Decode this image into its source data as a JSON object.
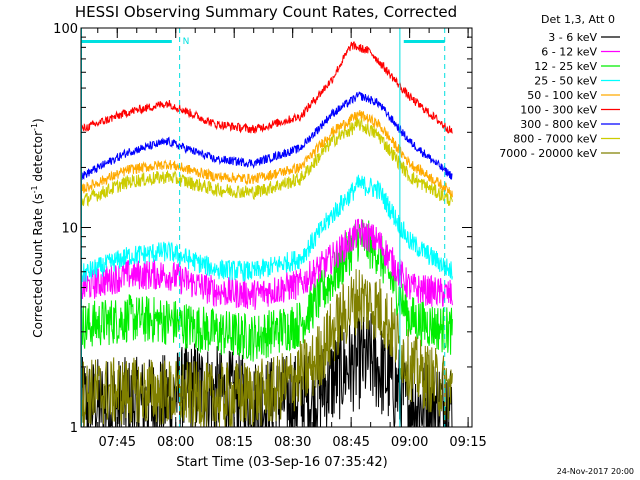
{
  "chart_data": {
    "type": "line",
    "title": "HESSI Observing Summary Count Rates, Corrected",
    "ylabel_main": "Corrected Count Rate (s",
    "ylabel_sup": "-1",
    "ylabel_mid": " detector",
    "ylabel_sup2": "-1",
    "ylabel_end": ")",
    "xlabel": "Start Time (03-Sep-16 07:35:42)",
    "yscale": "log",
    "ylim": [
      1,
      100
    ],
    "y_ticks": [
      "1",
      "10",
      "100"
    ],
    "x_range_minutes": [
      455.7,
      556.0
    ],
    "x_ticks": [
      {
        "t": 465,
        "label": "07:45"
      },
      {
        "t": 480,
        "label": "08:00"
      },
      {
        "t": 495,
        "label": "08:15"
      },
      {
        "t": 510,
        "label": "08:30"
      },
      {
        "t": 525,
        "label": "08:45"
      },
      {
        "t": 540,
        "label": "09:00"
      },
      {
        "t": 555,
        "label": "09:15"
      }
    ],
    "legend_title": "Det 1,3, Att 0",
    "legend_placement": "right",
    "series": [
      {
        "name": "3 - 6 keV",
        "color": "#000000",
        "base": [
          [
            455.7,
            1.3
          ],
          [
            475,
            1.3
          ],
          [
            485,
            1.6
          ],
          [
            500,
            1.3
          ],
          [
            515,
            1.4
          ],
          [
            524,
            2.0
          ],
          [
            530,
            2.2
          ],
          [
            540,
            1.3
          ],
          [
            551,
            1.3
          ]
        ],
        "noise": 0.55,
        "floor": 1.0
      },
      {
        "name": "6 - 12 keV",
        "color": "#ff00ff",
        "base": [
          [
            455.7,
            5.0
          ],
          [
            468,
            5.8
          ],
          [
            478,
            5.8
          ],
          [
            490,
            4.8
          ],
          [
            500,
            4.6
          ],
          [
            512,
            5.2
          ],
          [
            520,
            7.0
          ],
          [
            527,
            9.5
          ],
          [
            532,
            8.5
          ],
          [
            540,
            5.0
          ],
          [
            551,
            4.6
          ]
        ],
        "noise": 0.18,
        "floor": 1.0
      },
      {
        "name": "12 - 25 keV",
        "color": "#00ee00",
        "base": [
          [
            455.7,
            3.2
          ],
          [
            468,
            3.5
          ],
          [
            478,
            3.4
          ],
          [
            490,
            3.0
          ],
          [
            500,
            2.8
          ],
          [
            512,
            3.3
          ],
          [
            520,
            5.5
          ],
          [
            527,
            9.0
          ],
          [
            532,
            7.5
          ],
          [
            540,
            3.5
          ],
          [
            551,
            3.0
          ]
        ],
        "noise": 0.28,
        "floor": 1.0
      },
      {
        "name": "25 - 50 keV",
        "color": "#00ffff",
        "base": [
          [
            455.7,
            5.8
          ],
          [
            468,
            7.2
          ],
          [
            478,
            7.6
          ],
          [
            490,
            6.2
          ],
          [
            500,
            6.0
          ],
          [
            512,
            7.0
          ],
          [
            520,
            11.5
          ],
          [
            527,
            16.5
          ],
          [
            532,
            15.5
          ],
          [
            540,
            8.5
          ],
          [
            551,
            6.0
          ]
        ],
        "noise": 0.12,
        "floor": 1.0
      },
      {
        "name": "50 - 100 keV",
        "color": "#ffaa00",
        "base": [
          [
            455.7,
            15.5
          ],
          [
            468,
            19.5
          ],
          [
            478,
            20.8
          ],
          [
            490,
            18.0
          ],
          [
            500,
            17.5
          ],
          [
            512,
            20.0
          ],
          [
            520,
            30.0
          ],
          [
            527,
            37.0
          ],
          [
            532,
            33.0
          ],
          [
            540,
            21.0
          ],
          [
            551,
            15.0
          ]
        ],
        "noise": 0.06,
        "floor": 1.0
      },
      {
        "name": "100 - 300 keV",
        "color": "#ff0000",
        "base": [
          [
            455.7,
            31.0
          ],
          [
            468,
            38.0
          ],
          [
            478,
            42.0
          ],
          [
            490,
            33.0
          ],
          [
            500,
            31.0
          ],
          [
            512,
            36.0
          ],
          [
            520,
            55.0
          ],
          [
            525,
            82.0
          ],
          [
            530,
            76.0
          ],
          [
            540,
            45.0
          ],
          [
            551,
            30.0
          ]
        ],
        "noise": 0.05,
        "floor": 1.0
      },
      {
        "name": "300 - 800 keV",
        "color": "#0000ff",
        "base": [
          [
            455.7,
            18.0
          ],
          [
            468,
            24.0
          ],
          [
            478,
            27.0
          ],
          [
            490,
            22.0
          ],
          [
            500,
            21.0
          ],
          [
            512,
            25.0
          ],
          [
            520,
            37.0
          ],
          [
            527,
            46.0
          ],
          [
            532,
            42.0
          ],
          [
            540,
            27.0
          ],
          [
            551,
            18.0
          ]
        ],
        "noise": 0.05,
        "floor": 1.0
      },
      {
        "name": "800 - 7000 keV",
        "color": "#cccc00",
        "base": [
          [
            455.7,
            13.5
          ],
          [
            468,
            17.0
          ],
          [
            478,
            18.0
          ],
          [
            490,
            15.5
          ],
          [
            500,
            15.0
          ],
          [
            512,
            17.5
          ],
          [
            520,
            27.0
          ],
          [
            527,
            33.0
          ],
          [
            532,
            29.0
          ],
          [
            540,
            18.0
          ],
          [
            551,
            13.5
          ]
        ],
        "noise": 0.08,
        "floor": 1.0
      },
      {
        "name": "7000 - 20000 keV",
        "color": "#808000",
        "base": [
          [
            455.7,
            1.5
          ],
          [
            475,
            1.5
          ],
          [
            490,
            1.4
          ],
          [
            505,
            1.5
          ],
          [
            515,
            2.0
          ],
          [
            522,
            3.4
          ],
          [
            527,
            4.5
          ],
          [
            533,
            3.8
          ],
          [
            540,
            2.0
          ],
          [
            551,
            1.5
          ]
        ],
        "noise": 0.4,
        "floor": 1.0
      }
    ],
    "markers": {
      "cyan_dashed_lines_t": [
        481.0,
        549.0
      ],
      "cyan_solid_lines_t": [
        537.5
      ],
      "cyan_bars": [
        [
          455.7,
          479.0
        ],
        [
          538.5,
          549.0
        ]
      ],
      "bar_label": "N"
    }
  },
  "footer": {
    "date_stamp": "24-Nov-2017 20:00"
  }
}
